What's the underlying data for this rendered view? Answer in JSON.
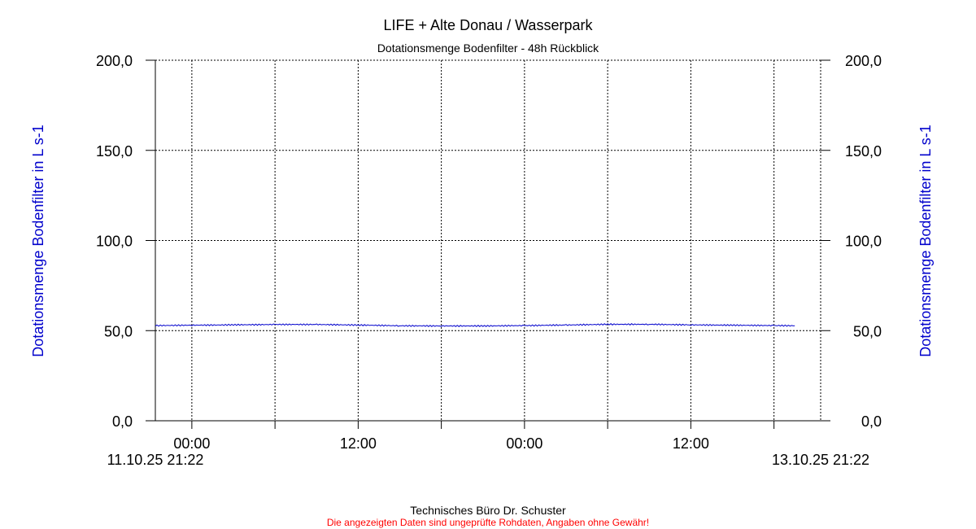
{
  "chart_data": {
    "type": "line",
    "title": "LIFE + Alte Donau / Wasserpark",
    "subtitle": "Dotationsmenge Bodenfilter - 48h Rückblick",
    "ylabel": "Dotationsmenge Bodenfilter in L s-1",
    "ylim": [
      0,
      200
    ],
    "y_ticks": [
      "0,0",
      "50,0",
      "100,0",
      "150,0",
      "200,0"
    ],
    "x_range": [
      "2025-10-11T21:22",
      "2025-10-13T21:22"
    ],
    "x_tick_labels": [
      "00:00",
      "12:00",
      "00:00",
      "12:00"
    ],
    "x_tick_times": [
      "2025-10-12T00:00",
      "2025-10-12T12:00",
      "2025-10-13T00:00",
      "2025-10-13T12:00"
    ],
    "x_minor_times": [
      "2025-10-12T06:00",
      "2025-10-12T18:00",
      "2025-10-13T06:00",
      "2025-10-13T18:00"
    ],
    "x_start_label": "11.10.25 21:22",
    "x_end_label": "13.10.25 21:22",
    "grid": true,
    "line_color": "#0000cc",
    "series": [
      {
        "x": [
          "2025-10-11T21:22",
          "2025-10-12T00:00",
          "2025-10-12T03:00",
          "2025-10-12T06:00",
          "2025-10-12T09:00",
          "2025-10-12T12:00",
          "2025-10-12T15:00",
          "2025-10-12T18:00",
          "2025-10-12T21:00",
          "2025-10-13T00:00",
          "2025-10-13T03:00",
          "2025-10-13T06:00",
          "2025-10-13T09:00",
          "2025-10-13T12:00",
          "2025-10-13T15:00",
          "2025-10-13T18:00",
          "2025-10-13T19:30"
        ],
        "values": [
          52.8,
          53.0,
          53.2,
          53.4,
          53.4,
          53.1,
          52.7,
          52.6,
          52.6,
          52.8,
          53.1,
          53.5,
          53.5,
          53.2,
          53.0,
          52.8,
          52.7
        ]
      }
    ]
  },
  "footer": {
    "line1": "Technisches Büro Dr. Schuster",
    "line2": "Die angezeigten Daten sind ungeprüfte Rohdaten, Angaben ohne Gewähr!",
    "line2_color": "#ff0000"
  },
  "ylabel_color": "#0000cc"
}
